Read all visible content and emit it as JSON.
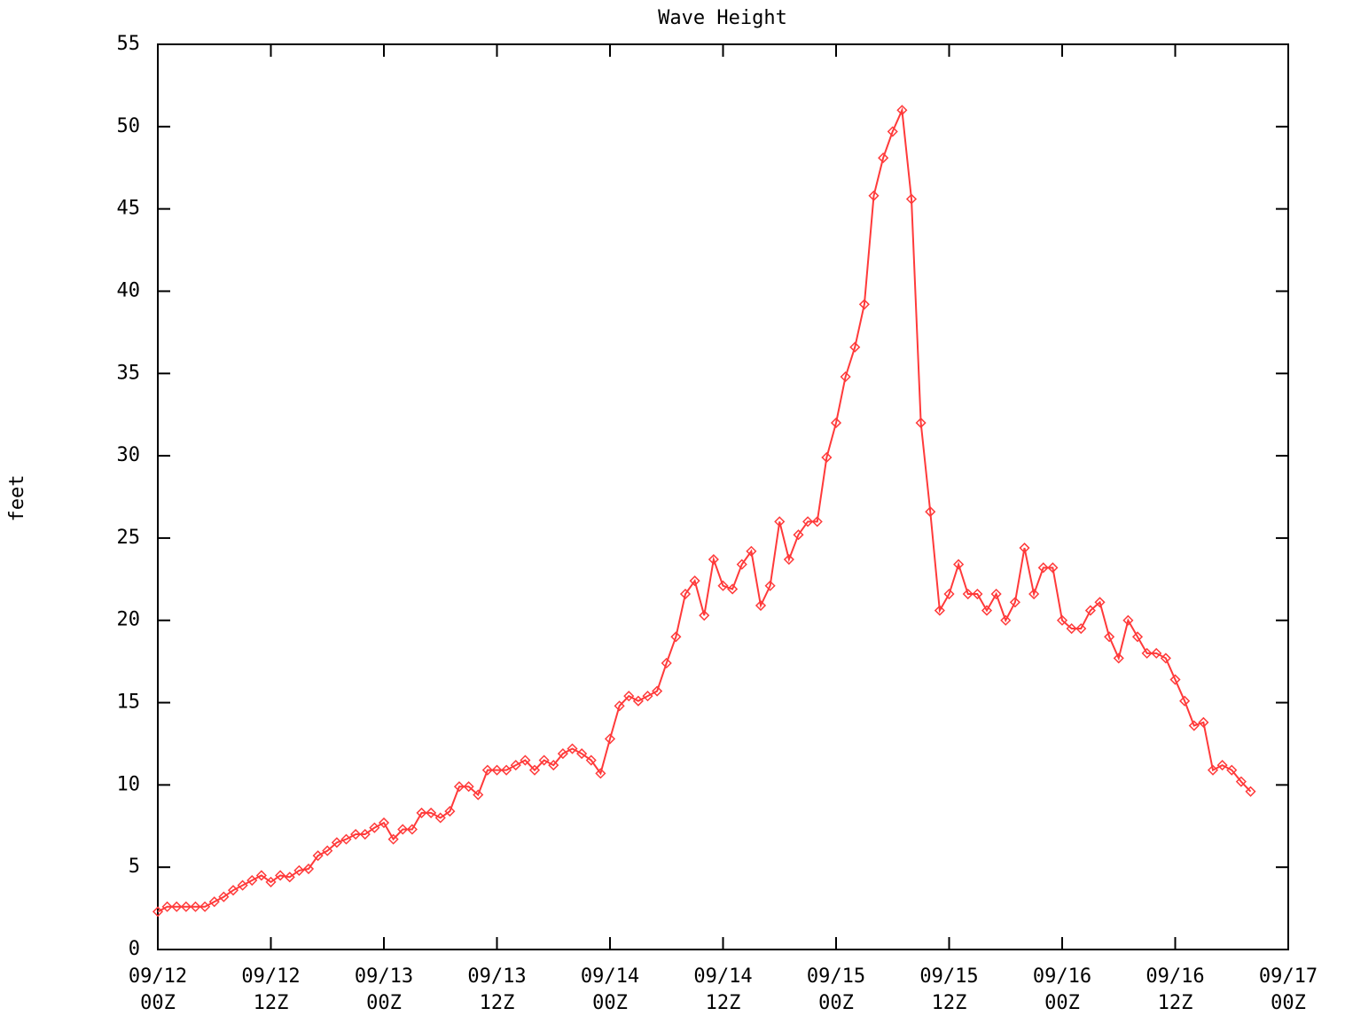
{
  "chart_data": {
    "type": "line",
    "title": "Wave Height",
    "ylabel": "feet",
    "x": [
      0,
      1,
      2,
      3,
      4,
      5,
      6,
      7,
      8,
      9,
      10,
      11,
      12,
      13,
      14,
      15,
      16,
      17,
      18,
      19,
      20,
      21,
      22,
      23,
      24,
      25,
      26,
      27,
      28,
      29,
      30,
      31,
      32,
      33,
      34,
      35,
      36,
      37,
      38,
      39,
      40,
      41,
      42,
      43,
      44,
      45,
      46,
      47,
      48,
      49,
      50,
      51,
      52,
      53,
      54,
      55,
      56,
      57,
      58,
      59,
      60,
      61,
      62,
      63,
      64,
      65,
      66,
      67,
      68,
      69,
      70,
      71,
      72,
      73,
      74,
      75,
      76,
      77,
      78,
      79,
      80,
      81,
      82,
      83,
      84,
      85,
      86,
      87,
      88,
      89,
      90,
      91,
      92,
      93,
      94,
      95,
      96,
      97,
      98,
      99,
      100,
      101,
      102,
      103,
      104,
      105,
      106,
      107,
      108,
      109,
      110,
      111,
      112,
      113,
      114,
      115,
      116
    ],
    "series": [
      {
        "name": "Wave Height",
        "color": "#ff3a3a",
        "values": [
          2.3,
          2.6,
          2.6,
          2.6,
          2.6,
          2.6,
          2.9,
          3.2,
          3.6,
          3.9,
          4.2,
          4.5,
          4.1,
          4.5,
          4.4,
          4.8,
          4.9,
          5.7,
          6.0,
          6.5,
          6.7,
          7.0,
          7.0,
          7.4,
          7.7,
          6.7,
          7.3,
          7.3,
          8.3,
          8.3,
          8.0,
          8.4,
          9.9,
          9.9,
          9.4,
          10.9,
          10.9,
          10.9,
          11.2,
          11.5,
          10.9,
          11.5,
          11.2,
          11.9,
          12.2,
          11.9,
          11.5,
          10.7,
          12.8,
          14.8,
          15.4,
          15.1,
          15.4,
          15.7,
          17.4,
          19.0,
          21.6,
          22.4,
          20.3,
          23.7,
          22.1,
          21.9,
          23.4,
          24.2,
          20.9,
          22.1,
          26.0,
          23.7,
          25.2,
          26.0,
          26.0,
          29.9,
          32.0,
          34.8,
          36.6,
          39.2,
          45.8,
          48.1,
          49.7,
          51.0,
          45.6,
          32.0,
          26.6,
          20.6,
          21.6,
          23.4,
          21.6,
          21.6,
          20.6,
          21.6,
          20.0,
          21.1,
          24.4,
          21.6,
          23.2,
          23.2,
          20.0,
          19.5,
          19.5,
          20.6,
          21.1,
          19.0,
          17.7,
          20.0,
          19.0,
          18.0,
          18.0,
          17.7,
          16.4,
          15.1,
          13.6,
          13.8,
          10.9,
          11.2,
          10.9,
          10.2,
          9.6
        ]
      }
    ],
    "xlim": [
      0,
      120
    ],
    "xticks": [
      {
        "value": 0,
        "label": "09/12\n00Z"
      },
      {
        "value": 12,
        "label": "09/12\n12Z"
      },
      {
        "value": 24,
        "label": "09/13\n00Z"
      },
      {
        "value": 36,
        "label": "09/13\n12Z"
      },
      {
        "value": 48,
        "label": "09/14\n00Z"
      },
      {
        "value": 60,
        "label": "09/14\n12Z"
      },
      {
        "value": 72,
        "label": "09/15\n00Z"
      },
      {
        "value": 84,
        "label": "09/15\n12Z"
      },
      {
        "value": 96,
        "label": "09/16\n00Z"
      },
      {
        "value": 108,
        "label": "09/16\n12Z"
      },
      {
        "value": 120,
        "label": "09/17\n00Z"
      }
    ],
    "ylim": [
      0,
      55
    ],
    "yticks": [
      0,
      5,
      10,
      15,
      20,
      25,
      30,
      35,
      40,
      45,
      50,
      55
    ]
  }
}
